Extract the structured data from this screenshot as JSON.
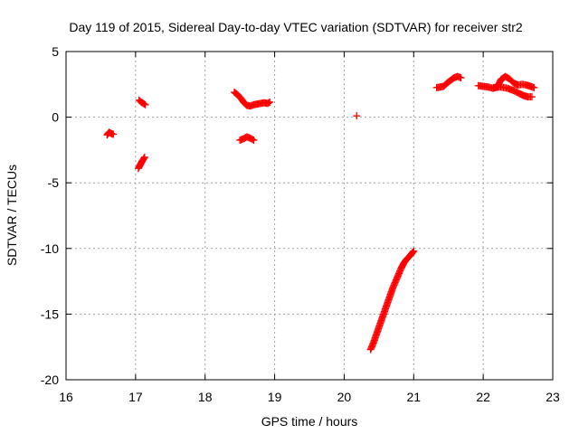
{
  "chart_data": {
    "type": "scatter",
    "title": "Day 119 of 2015, Sidereal Day-to-day VTEC variation (SDTVAR) for receiver str2",
    "xlabel": "GPS time / hours",
    "ylabel": "SDTVAR / TECUs",
    "xlim": [
      16,
      23
    ],
    "ylim": [
      -20,
      5
    ],
    "x_ticks": [
      "16",
      "17",
      "18",
      "19",
      "20",
      "21",
      "22",
      "23"
    ],
    "y_ticks": [
      "5",
      "0",
      "-5",
      "-10",
      "-15",
      "-20"
    ],
    "grid": true,
    "marker": "+",
    "marker_color": "#ff0000",
    "segments": [
      {
        "x": [
          16.59,
          16.62,
          16.65,
          16.68
        ],
        "y": [
          -1.35,
          -1.15,
          -1.25,
          -1.3
        ]
      },
      {
        "x": [
          17.05,
          17.08,
          17.11,
          17.14
        ],
        "y": [
          1.3,
          1.15,
          1.05,
          0.95
        ]
      },
      {
        "x": [
          17.04,
          17.07,
          17.1,
          17.13
        ],
        "y": [
          -3.9,
          -3.6,
          -3.3,
          -3.05
        ]
      },
      {
        "x": [
          18.42,
          18.47,
          18.52,
          18.56,
          18.6,
          18.65,
          18.7,
          18.75,
          18.8,
          18.85,
          18.9,
          18.93
        ],
        "y": [
          1.9,
          1.7,
          1.4,
          1.1,
          0.9,
          0.85,
          0.95,
          1.0,
          1.05,
          1.1,
          1.05,
          1.15
        ]
      },
      {
        "x": [
          18.5,
          18.55,
          18.6,
          18.65,
          18.7
        ],
        "y": [
          -1.75,
          -1.65,
          -1.5,
          -1.6,
          -1.75
        ]
      },
      {
        "x": [
          20.18
        ],
        "y": [
          0.1
        ]
      },
      {
        "x": [
          20.38,
          20.42,
          20.46,
          20.5,
          20.54,
          20.58,
          20.62,
          20.66,
          20.7,
          20.74,
          20.78,
          20.82,
          20.86,
          20.9,
          20.94,
          20.97,
          21.0
        ],
        "y": [
          -17.7,
          -17.2,
          -16.6,
          -16.0,
          -15.4,
          -14.8,
          -14.2,
          -13.6,
          -13.0,
          -12.5,
          -12.0,
          -11.5,
          -11.1,
          -10.8,
          -10.6,
          -10.4,
          -10.2
        ]
      },
      {
        "x": [
          21.33,
          21.38,
          21.43,
          21.48,
          21.53,
          21.58,
          21.63,
          21.68
        ],
        "y": [
          2.25,
          2.3,
          2.35,
          2.6,
          2.8,
          3.0,
          3.1,
          3.0
        ]
      },
      {
        "x": [
          21.93,
          22.0,
          22.07,
          22.14,
          22.2,
          22.26,
          22.32,
          22.38,
          22.44,
          22.5,
          22.56,
          22.62,
          22.68,
          22.73
        ],
        "y": [
          2.4,
          2.35,
          2.3,
          2.2,
          2.3,
          2.9,
          3.1,
          2.9,
          2.6,
          2.45,
          2.5,
          2.45,
          2.35,
          2.25
        ]
      },
      {
        "x": [
          22.15,
          22.25,
          22.35,
          22.45,
          22.52,
          22.58,
          22.64,
          22.7
        ],
        "y": [
          2.25,
          2.3,
          2.2,
          2.0,
          1.8,
          1.65,
          1.55,
          1.55
        ]
      }
    ]
  }
}
